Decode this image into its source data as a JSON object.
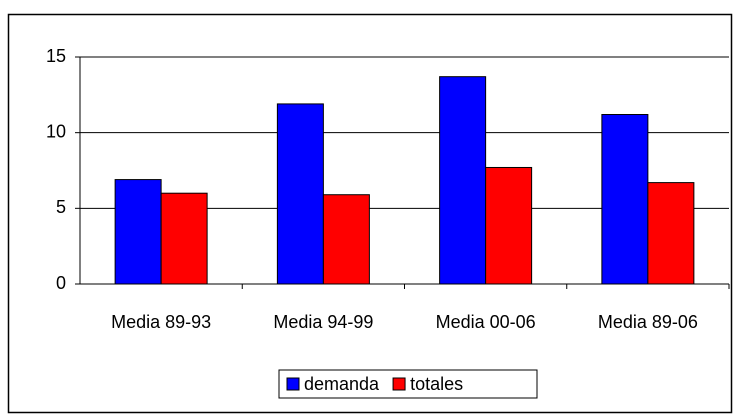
{
  "chart_data": {
    "type": "bar",
    "categories": [
      "Media 89-93",
      "Media 94-99",
      "Media 00-06",
      "Media 89-06"
    ],
    "series": [
      {
        "name": "demanda",
        "color": "#0000ff",
        "values": [
          6.9,
          11.9,
          13.7,
          11.2
        ]
      },
      {
        "name": "totales",
        "color": "#ff0000",
        "values": [
          6.0,
          5.9,
          7.7,
          6.7
        ]
      }
    ],
    "ylim": [
      0,
      15
    ],
    "yticks": [
      0,
      5,
      10,
      15
    ],
    "grid": true,
    "legend": "bottom"
  }
}
